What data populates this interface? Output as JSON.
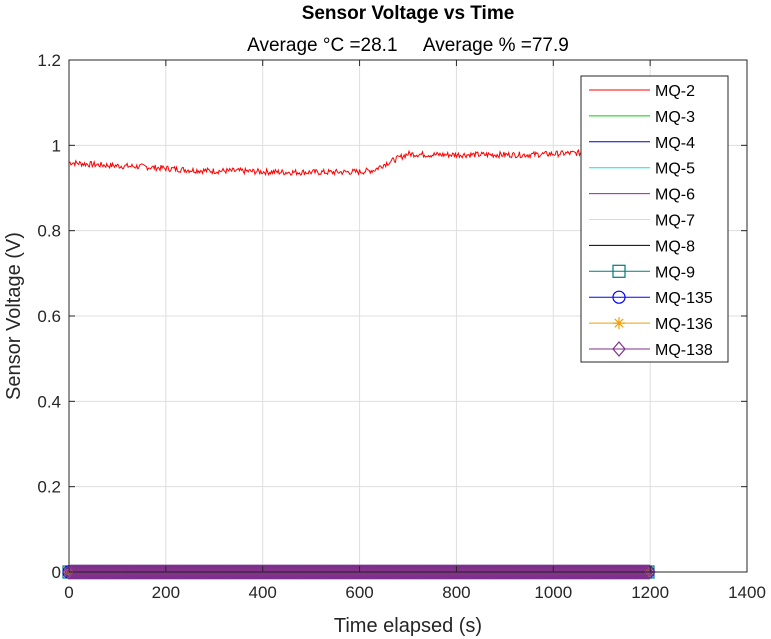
{
  "chart_data": {
    "type": "line",
    "title": "Sensor Voltage vs Time",
    "subtitle": "Average °C =28.1     Average % =77.9",
    "xlabel": "Time elapsed (s)",
    "ylabel": "Sensor Voltage (V)",
    "xlim": [
      0,
      1400
    ],
    "ylim": [
      0,
      1.2
    ],
    "xticks": [
      0,
      200,
      400,
      600,
      800,
      1000,
      1200,
      1400
    ],
    "yticks": [
      0,
      0.2,
      0.4,
      0.6,
      0.8,
      1,
      1.2
    ],
    "xtick_labels": [
      "0",
      "200",
      "400",
      "600",
      "800",
      "1000",
      "1200",
      "1400"
    ],
    "ytick_labels": [
      "0",
      "0.2",
      "0.4",
      "0.6",
      "0.8",
      "1",
      "1.2"
    ],
    "grid": true,
    "legend_position": "top-right",
    "series": [
      {
        "name": "MQ-2",
        "color": "#ff0000",
        "marker": "none",
        "x": [
          0,
          50,
          100,
          150,
          200,
          250,
          300,
          350,
          400,
          450,
          500,
          550,
          600,
          630,
          650,
          680,
          700,
          750,
          800,
          850,
          900,
          950,
          1000,
          1050,
          1100,
          1150,
          1200
        ],
        "y": [
          0.96,
          0.955,
          0.952,
          0.95,
          0.946,
          0.942,
          0.94,
          0.94,
          0.938,
          0.937,
          0.937,
          0.937,
          0.938,
          0.942,
          0.955,
          0.97,
          0.98,
          0.978,
          0.978,
          0.978,
          0.978,
          0.978,
          0.98,
          0.982,
          0.982,
          0.982,
          0.982
        ]
      },
      {
        "name": "MQ-3",
        "color": "#00cc00",
        "marker": "none",
        "x": [
          0,
          1200
        ],
        "y": [
          0,
          0
        ]
      },
      {
        "name": "MQ-4",
        "color": "#0000cc",
        "marker": "none",
        "x": [
          0,
          1200
        ],
        "y": [
          0,
          0
        ]
      },
      {
        "name": "MQ-5",
        "color": "#00e5e5",
        "marker": "none",
        "x": [
          0,
          1200
        ],
        "y": [
          0,
          0
        ]
      },
      {
        "name": "MQ-6",
        "color": "#cc00cc",
        "marker": "none",
        "x": [
          0,
          1200
        ],
        "y": [
          0,
          0
        ]
      },
      {
        "name": "MQ-7",
        "color": "#ffee00",
        "marker": "none",
        "x": [
          0,
          1200
        ],
        "y": [
          0,
          0
        ]
      },
      {
        "name": "MQ-8",
        "color": "#000000",
        "marker": "none",
        "x": [
          0,
          1200
        ],
        "y": [
          0,
          0
        ]
      },
      {
        "name": "MQ-9",
        "color": "#007a7a",
        "marker": "square",
        "x": [
          0,
          1200
        ],
        "y": [
          0,
          0
        ]
      },
      {
        "name": "MQ-135",
        "color": "#0000ff",
        "marker": "circle",
        "x": [
          0,
          1200
        ],
        "y": [
          0,
          0
        ]
      },
      {
        "name": "MQ-136",
        "color": "#f0a000",
        "marker": "asterisk",
        "x": [
          0,
          1200
        ],
        "y": [
          0,
          0
        ]
      },
      {
        "name": "MQ-138",
        "color": "#7e2f8e",
        "marker": "diamond",
        "x": [
          0,
          1200
        ],
        "y": [
          0,
          0
        ]
      }
    ]
  }
}
